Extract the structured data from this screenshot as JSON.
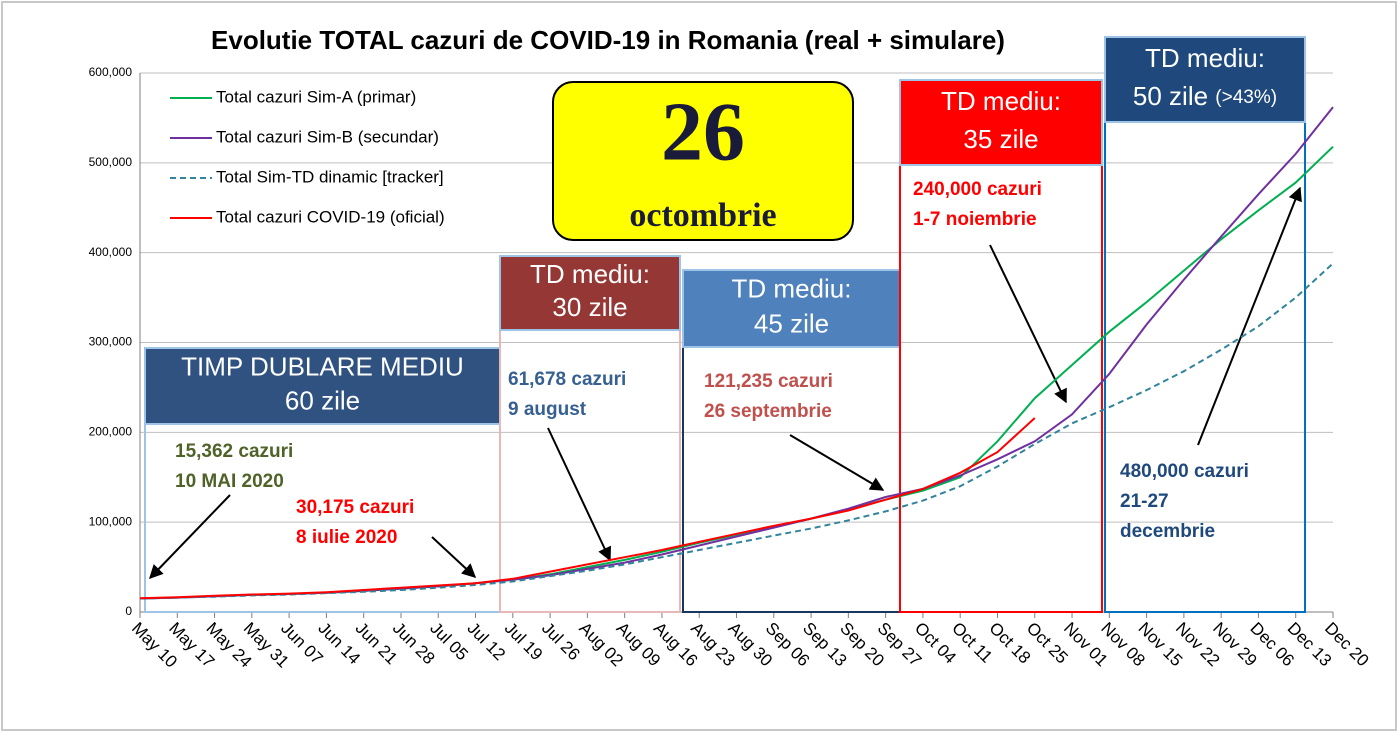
{
  "chart_data": {
    "type": "line",
    "title": "Evolutie TOTAL cazuri de COVID-19 in Romania (real + simulare)",
    "categories": [
      "May 10",
      "May 17",
      "May 24",
      "May 31",
      "Jun 07",
      "Jun 14",
      "Jun 21",
      "Jun 28",
      "Jul 05",
      "Jul 12",
      "Jul 19",
      "Jul 26",
      "Aug 02",
      "Aug 09",
      "Aug 16",
      "Aug 23",
      "Aug 30",
      "Sep 06",
      "Sep 13",
      "Sep 20",
      "Sep 27",
      "Oct 04",
      "Oct 11",
      "Oct 18",
      "Oct 25",
      "Nov 01",
      "Nov 08",
      "Nov 15",
      "Nov 22",
      "Nov 29",
      "Dec 06",
      "Dec 13",
      "Dec 20"
    ],
    "series": [
      {
        "name": "Total cazuri Sim-A (primar)",
        "color": "#00b050",
        "dash": false,
        "values": [
          15000,
          16000,
          17500,
          19000,
          20000,
          21500,
          23500,
          26000,
          28500,
          32000,
          36000,
          42000,
          50000,
          58000,
          67000,
          77000,
          86000,
          95000,
          104000,
          114000,
          125000,
          135000,
          150000,
          190000,
          238000,
          275000,
          312000,
          345000,
          380000,
          415000,
          447000,
          478000,
          518000
        ]
      },
      {
        "name": "Total cazuri Sim-B (secundar)",
        "color": "#7030a0",
        "dash": false,
        "values": [
          15000,
          16000,
          17500,
          19000,
          20000,
          21500,
          23500,
          26000,
          28500,
          32000,
          36000,
          41000,
          48000,
          55000,
          64000,
          74000,
          84000,
          94000,
          104000,
          115000,
          128000,
          137000,
          152000,
          170000,
          190000,
          220000,
          265000,
          320000,
          370000,
          418000,
          465000,
          510000,
          562000
        ]
      },
      {
        "name": "Total Sim-TD dinamic [tracker]",
        "color": "#31849b",
        "dash": true,
        "values": [
          15000,
          16000,
          17000,
          18500,
          19500,
          21000,
          22500,
          24500,
          27000,
          30000,
          34000,
          40000,
          46000,
          53000,
          61000,
          69000,
          77000,
          85000,
          93000,
          102000,
          112000,
          124000,
          140000,
          162000,
          187000,
          210000,
          228000,
          247000,
          268000,
          292000,
          318000,
          350000,
          388000
        ]
      },
      {
        "name": "Total cazuri COVID-19 (oficial)",
        "color": "#ff0000",
        "dash": false,
        "values": [
          15400,
          16500,
          18000,
          19500,
          20500,
          22000,
          24500,
          27000,
          29500,
          32000,
          37000,
          45000,
          53000,
          61000,
          69000,
          78000,
          87000,
          96000,
          104000,
          113000,
          125000,
          137000,
          155000,
          178000,
          216000,
          null,
          null,
          null,
          null,
          null,
          null,
          null,
          null
        ]
      }
    ],
    "ylim": [
      0,
      600000
    ],
    "yticks": [
      0,
      {
        "value": 100000,
        "label": "100,000"
      },
      {
        "value": 200000,
        "label": "200,000"
      },
      {
        "value": 300000,
        "label": "300,000"
      },
      {
        "value": 400000,
        "label": "400,000"
      },
      {
        "value": 500000,
        "label": "500,000"
      },
      {
        "value": 600000,
        "label": "600,000"
      }
    ],
    "grid": true,
    "date_badge": {
      "day": "26",
      "month": "octombrie"
    },
    "annotations": [
      {
        "header": [
          "TIMP DUBLARE MEDIU",
          "60 zile"
        ],
        "header_color": "#2f5281",
        "border_color": "#9dc3e6",
        "notes": [
          {
            "lines": [
              "15,362 cazuri",
              "10 MAI 2020"
            ],
            "color": "#4f6228"
          },
          {
            "lines": [
              "30,175 cazuri",
              "8 iulie 2020"
            ],
            "color": "#ff0000"
          }
        ]
      },
      {
        "header": [
          "TD  mediu:",
          "30 zile"
        ],
        "header_color": "#953735",
        "border_color": "#e6b9b8",
        "notes": [
          {
            "lines": [
              "61,678 cazuri",
              "9 august"
            ],
            "color": "#376092"
          }
        ]
      },
      {
        "header": [
          "TD  mediu:",
          "45 zile"
        ],
        "header_color": "#4f81bd",
        "border_color": "#17375e",
        "notes": [
          {
            "lines": [
              "121,235 cazuri",
              "26 septembrie"
            ],
            "color": "#c0504d"
          }
        ]
      },
      {
        "header": [
          "TD  mediu:",
          "35 zile"
        ],
        "header_color": "#ff0000",
        "border_color": "#ff0000",
        "notes": [
          {
            "lines": [
              "240,000 cazuri",
              "1-7 noiembrie"
            ],
            "color": "#ff0000"
          }
        ]
      },
      {
        "header": [
          "TD  mediu:",
          "50 zile",
          "(>43%)"
        ],
        "header_color": "#1f497d",
        "border_color": "#0070c0",
        "notes": [
          {
            "lines": [
              "480,000 cazuri",
              "21-27",
              "decembrie"
            ],
            "color": "#1f497d"
          }
        ]
      }
    ]
  }
}
